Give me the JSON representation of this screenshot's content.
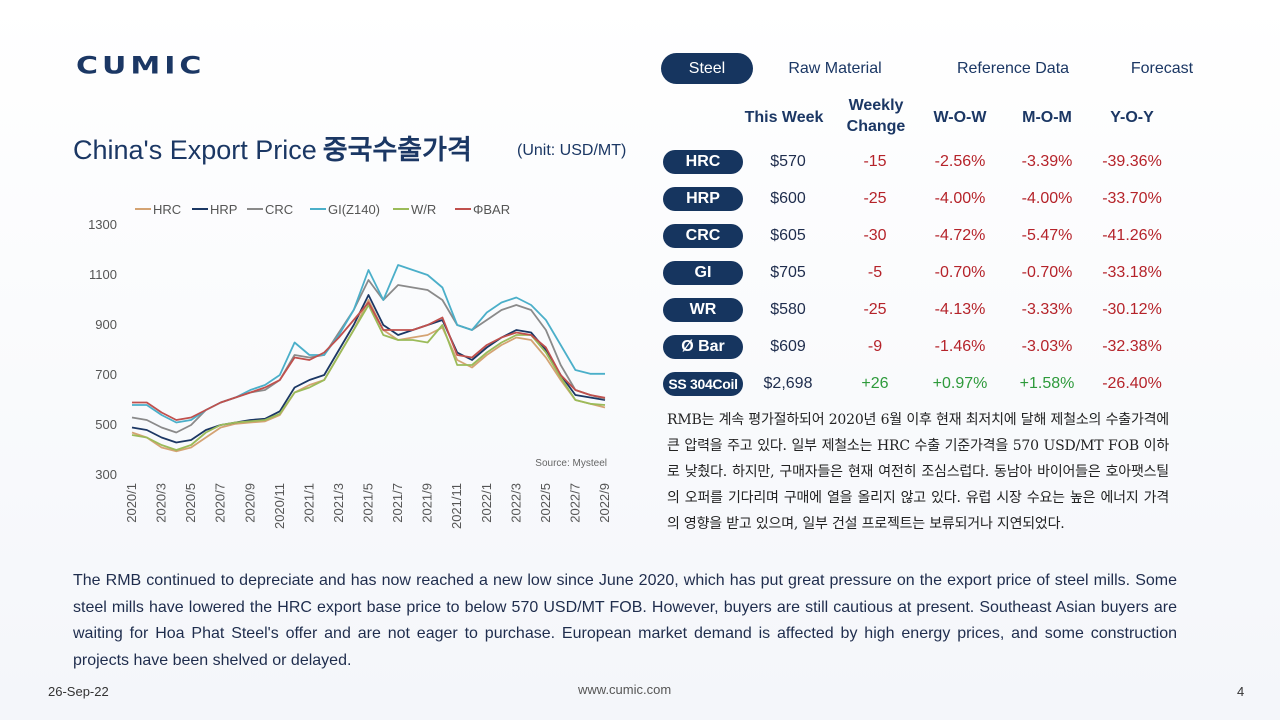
{
  "logo": "CUMIC",
  "title": {
    "en": "China's Export Price",
    "ko": "중국수출가격"
  },
  "unit": "(Unit: USD/MT)",
  "tabs": [
    "Steel",
    "Raw Material",
    "Reference Data",
    "Forecast"
  ],
  "table": {
    "headers": {
      "this_week": "This Week",
      "weekly_change_1": "Weekly",
      "weekly_change_2": "Change",
      "wow": "W-O-W",
      "mom": "M-O-M",
      "yoy": "Y-O-Y"
    },
    "rows": [
      {
        "product": "HRC",
        "price": "$570",
        "change": "-15",
        "wow": "-2.56%",
        "mom": "-3.39%",
        "yoy": "-39.36%"
      },
      {
        "product": "HRP",
        "price": "$600",
        "change": "-25",
        "wow": "-4.00%",
        "mom": "-4.00%",
        "yoy": "-33.70%"
      },
      {
        "product": "CRC",
        "price": "$605",
        "change": "-30",
        "wow": "-4.72%",
        "mom": "-5.47%",
        "yoy": "-41.26%"
      },
      {
        "product": "GI",
        "price": "$705",
        "change": "-5",
        "wow": "-0.70%",
        "mom": "-0.70%",
        "yoy": "-33.18%"
      },
      {
        "product": "WR",
        "price": "$580",
        "change": "-25",
        "wow": "-4.13%",
        "mom": "-3.33%",
        "yoy": "-30.12%"
      },
      {
        "product": "Ø Bar",
        "price": "$609",
        "change": "-9",
        "wow": "-1.46%",
        "mom": "-3.03%",
        "yoy": "-32.38%"
      },
      {
        "product": "SS 304Coil",
        "price": "$2,698",
        "change": "+26",
        "wow": "+0.97%",
        "mom": "+1.58%",
        "yoy": "-26.40%"
      }
    ]
  },
  "korean_text": "RMB는 계속 평가절하되어 2020년 6월 이후 현재 최저치에 달해 제철소의 수출가격에 큰 압력을 주고 있다. 일부 제철소는 HRC 수출 기준가격을 570 USD/MT FOB 이하로 낮췄다. 하지만, 구매자들은 현재 여전히 조심스럽다. 동남아 바이어들은 호아팻스틸의 오퍼를 기다리며 구매에 열을 올리지 않고 있다. 유럽 시장 수요는 높은 에너지 가격의 영향을 받고 있으며, 일부 건설 프로젝트는 보류되거나 지연되었다.",
  "english_text": "The RMB continued to depreciate and has now reached a new low since June 2020, which has put great pressure on the export price of steel mills. Some steel mills have lowered the HRC export base price to below 570 USD/MT FOB. However, buyers are still cautious at present. Southeast Asian buyers are waiting for Hoa Phat Steel's offer and are not eager to purchase. European market demand is affected by high energy prices, and some construction projects have been shelved or delayed.",
  "footer": {
    "date": "26-Sep-22",
    "url": "www.cumic.com",
    "page": "4"
  },
  "colors": {
    "navy": "#16355f",
    "negative": "#b5232a",
    "positive": "#2e9a3b"
  },
  "chart_data": {
    "type": "line",
    "x": [
      "2020/1",
      "2020/2",
      "2020/3",
      "2020/4",
      "2020/5",
      "2020/6",
      "2020/7",
      "2020/8",
      "2020/9",
      "2020/10",
      "2020/11",
      "2020/12",
      "2021/1",
      "2021/2",
      "2021/3",
      "2021/4",
      "2021/5",
      "2021/6",
      "2021/7",
      "2021/8",
      "2021/9",
      "2021/10",
      "2021/11",
      "2021/12",
      "2022/1",
      "2022/2",
      "2022/3",
      "2022/4",
      "2022/5",
      "2022/6",
      "2022/7",
      "2022/8",
      "2022/9"
    ],
    "xticks": [
      "2020/1",
      "2020/3",
      "2020/5",
      "2020/7",
      "2020/9",
      "2020/11",
      "2021/1",
      "2021/3",
      "2021/5",
      "2021/7",
      "2021/9",
      "2021/11",
      "2022/1",
      "2022/3",
      "2022/5",
      "2022/7",
      "2022/9"
    ],
    "yticks": [
      300,
      500,
      700,
      900,
      1100,
      1300
    ],
    "ylim": [
      300,
      1300
    ],
    "source": "Source: Mysteel",
    "legend_position": "top",
    "series": [
      {
        "name": "HRC",
        "color": "#d4a373",
        "values": [
          470,
          450,
          410,
          395,
          410,
          450,
          490,
          505,
          510,
          515,
          540,
          630,
          660,
          680,
          780,
          880,
          1000,
          880,
          840,
          850,
          860,
          890,
          760,
          730,
          780,
          820,
          850,
          840,
          770,
          680,
          600,
          585,
          570
        ]
      },
      {
        "name": "HRP",
        "color": "#1b3764",
        "values": [
          490,
          480,
          450,
          430,
          440,
          480,
          500,
          510,
          520,
          525,
          555,
          650,
          680,
          700,
          800,
          900,
          1020,
          900,
          860,
          880,
          900,
          920,
          790,
          760,
          810,
          850,
          880,
          870,
          800,
          700,
          620,
          610,
          600
        ]
      },
      {
        "name": "CRC",
        "color": "#8a8a8a",
        "values": [
          530,
          520,
          490,
          470,
          500,
          560,
          590,
          610,
          630,
          640,
          680,
          780,
          770,
          780,
          870,
          960,
          1080,
          1000,
          1060,
          1050,
          1040,
          1000,
          900,
          880,
          920,
          960,
          980,
          960,
          880,
          740,
          640,
          620,
          605
        ]
      },
      {
        "name": "GI(Z140)",
        "color": "#4bafc9",
        "values": [
          580,
          580,
          540,
          510,
          520,
          560,
          590,
          610,
          640,
          660,
          700,
          830,
          780,
          780,
          860,
          960,
          1120,
          1000,
          1140,
          1120,
          1100,
          1050,
          900,
          880,
          950,
          990,
          1010,
          980,
          920,
          820,
          720,
          705,
          705
        ]
      },
      {
        "name": "W/R",
        "color": "#9bbb59",
        "values": [
          460,
          450,
          420,
          400,
          420,
          470,
          500,
          510,
          515,
          520,
          545,
          630,
          650,
          680,
          780,
          880,
          980,
          860,
          840,
          840,
          830,
          900,
          740,
          740,
          790,
          830,
          860,
          860,
          790,
          690,
          600,
          585,
          580
        ]
      },
      {
        "name": "ΦBAR",
        "color": "#c0504d",
        "values": [
          590,
          590,
          550,
          520,
          530,
          560,
          590,
          610,
          630,
          650,
          680,
          770,
          760,
          790,
          850,
          920,
          990,
          880,
          880,
          880,
          900,
          930,
          780,
          770,
          820,
          850,
          870,
          860,
          810,
          700,
          640,
          620,
          609
        ]
      }
    ]
  }
}
